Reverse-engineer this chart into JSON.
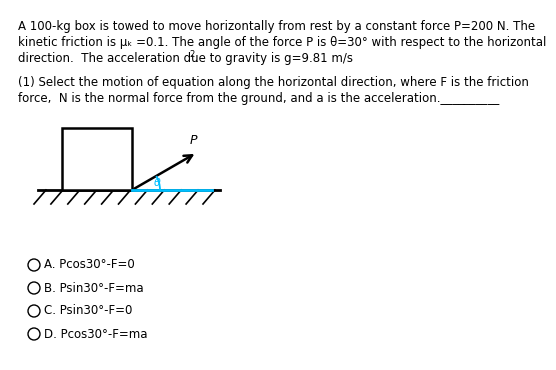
{
  "bg_color": "#ffffff",
  "text_color": "#000000",
  "line1": "A 100-kg box is towed to move horizontally from rest by a constant force P=200 N. The",
  "line2": "kinetic friction is μₖ =0.1. The angle of the force P is θ=30° with respect to the horizontal",
  "line3a": "direction.  The acceleration due to gravity is g=9.81 m/s",
  "line3_super": "2",
  "line3b": ".",
  "q_line1": "(1) Select the motion of equation along the horizontal direction, where F is the friction",
  "q_line2": "force,  N is the normal force from the ground, and a is the acceleration.__________",
  "options": [
    "A. Pcos30°-F=0",
    "B. Psin30°-F=ma",
    "C. Psin30°-F=0",
    "D. Pcos30°-F=ma"
  ],
  "horiz_line_color": "#00bfff",
  "theta_color": "#00bfff",
  "arc_color": "#00bfff"
}
